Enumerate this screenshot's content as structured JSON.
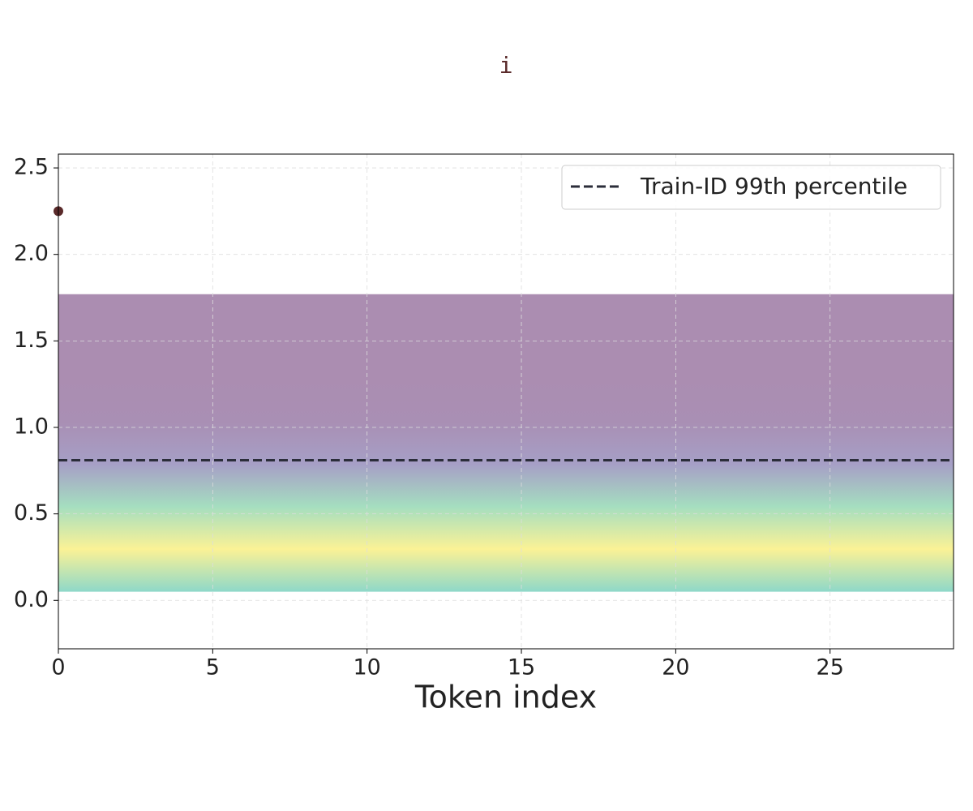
{
  "chart_data": {
    "type": "scatter",
    "title": "i",
    "xlabel": "Token index",
    "x": [
      0
    ],
    "values": [
      2.25
    ],
    "color": "#5a2a2a",
    "hline": {
      "name": "Train-ID 99th percentile",
      "value": 0.81,
      "color": "#2b2d3a"
    },
    "band": {
      "low": 0.05,
      "high": 1.77,
      "colors": [
        "#8ed8c9",
        "#fbf296",
        "#a5dec0",
        "#a69fc6",
        "#a98fb4",
        "#ab8db1",
        "#ab8db1",
        "#ab8db1"
      ]
    },
    "xlim": [
      0,
      29
    ],
    "xticks": [
      0,
      5,
      10,
      15,
      20,
      25
    ],
    "ylim": [
      -0.28,
      2.58
    ],
    "yticks": [
      {
        "value": 0,
        "label": "0.0"
      },
      0.5,
      {
        "value": 1,
        "label": "1.0"
      },
      1.5,
      {
        "value": 2,
        "label": "2.0"
      },
      2.5
    ],
    "grid": true,
    "legend": "upper right"
  }
}
